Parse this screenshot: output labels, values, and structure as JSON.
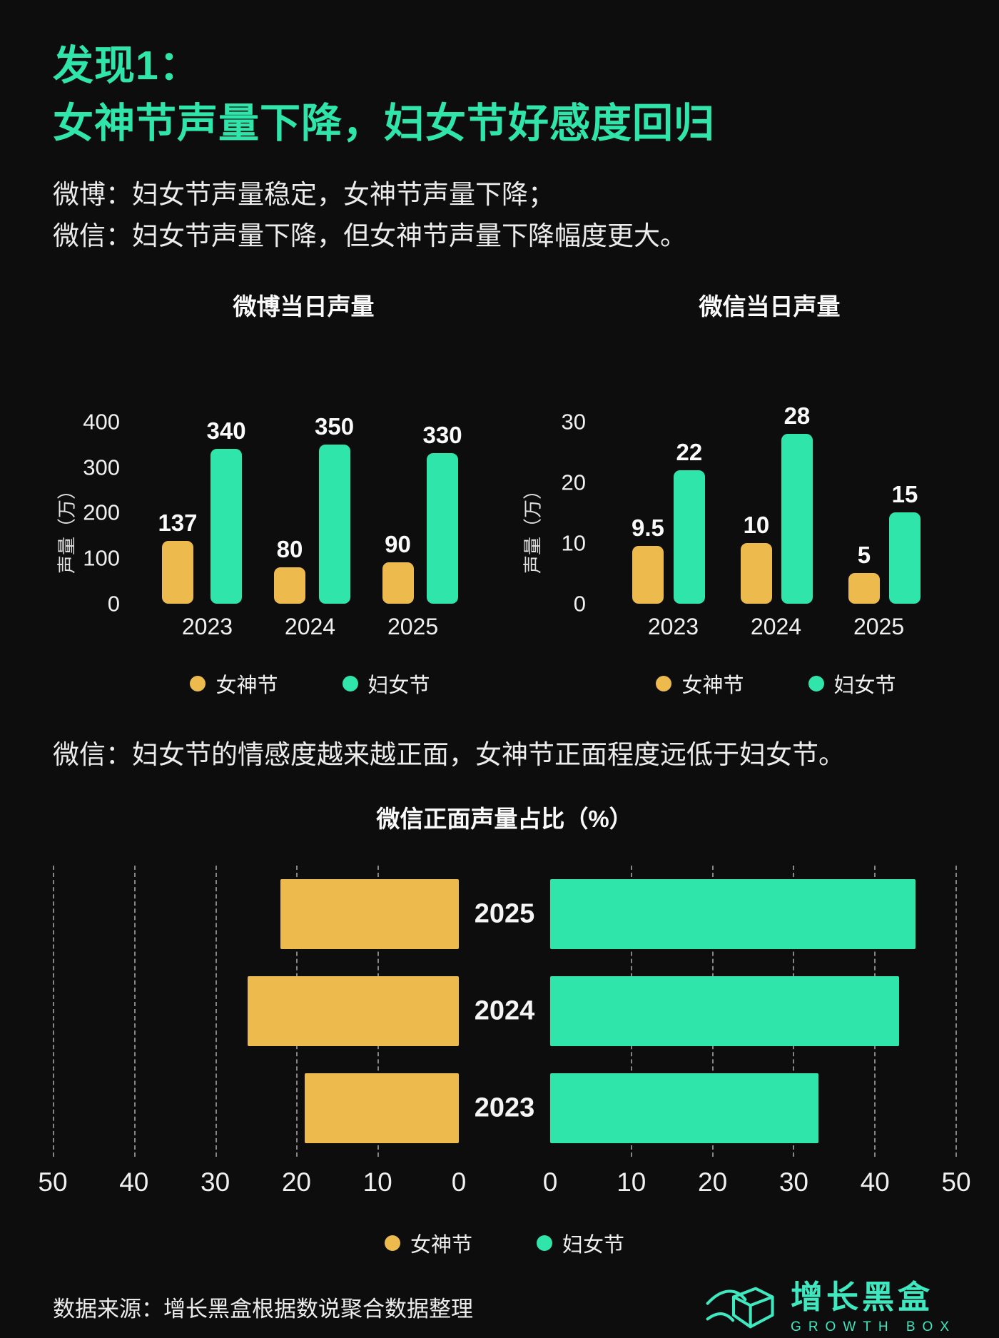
{
  "header": {
    "title_line1": "发现1：",
    "title_line2": "女神节声量下降，妇女节好感度回归",
    "subtitle_line1": "微博：妇女节声量稳定，女神节声量下降；",
    "subtitle_line2": "微信：妇女节声量下降，但女神节声量下降幅度更大。"
  },
  "mid_text": "微信：妇女节的情感度越来越正面，女神节正面程度远低于妇女节。",
  "legend": {
    "items": [
      {
        "label": "女神节",
        "color": "#edbb4d"
      },
      {
        "label": "妇女节",
        "color": "#2fe5a9"
      }
    ]
  },
  "colors": {
    "background": "#0d0d0d",
    "green": "#2fe5a9",
    "yellow": "#edbb4d",
    "text": "#f2f2f2",
    "logo": "#3ee9c0"
  },
  "chart_data": [
    {
      "type": "bar",
      "title": "微博当日声量",
      "ylabel": "声量（万）",
      "categories": [
        "2023",
        "2024",
        "2025"
      ],
      "series": [
        {
          "name": "女神节",
          "color": "#edbb4d",
          "values": [
            137,
            80,
            90
          ]
        },
        {
          "name": "妇女节",
          "color": "#2fe5a9",
          "values": [
            340,
            350,
            330
          ]
        }
      ],
      "ylim": [
        0,
        400
      ],
      "yticks": [
        400,
        300,
        200,
        100,
        0
      ],
      "data_labels": true,
      "grid": false,
      "legend_position": "bottom"
    },
    {
      "type": "bar",
      "title": "微信当日声量",
      "ylabel": "声量（万）",
      "categories": [
        "2023",
        "2024",
        "2025"
      ],
      "series": [
        {
          "name": "女神节",
          "color": "#edbb4d",
          "values": [
            9.5,
            10,
            5
          ]
        },
        {
          "name": "妇女节",
          "color": "#2fe5a9",
          "values": [
            22,
            28,
            15
          ]
        }
      ],
      "ylim": [
        0,
        30
      ],
      "yticks": [
        30,
        20,
        10,
        0
      ],
      "data_labels": true,
      "grid": false,
      "legend_position": "bottom"
    },
    {
      "type": "bar",
      "orientation": "horizontal-butterfly",
      "title": "微信正面声量占比（%）",
      "categories": [
        "2025",
        "2024",
        "2023"
      ],
      "series": [
        {
          "name": "女神节",
          "side": "left",
          "color": "#edbb4d",
          "values": [
            22,
            26,
            19
          ]
        },
        {
          "name": "妇女节",
          "side": "right",
          "color": "#2fe5a9",
          "values": [
            45,
            43,
            33
          ]
        }
      ],
      "xlim": [
        0,
        50
      ],
      "xticks": [
        0,
        10,
        20,
        30,
        40,
        50
      ],
      "grid": "dashed-vertical",
      "data_labels": false,
      "legend_position": "bottom"
    }
  ],
  "footer": {
    "source": "数据来源：增长黑盒根据数说聚合数据整理",
    "logo_cn": "增长黑盒",
    "logo_en": "GROWTH BOX"
  }
}
